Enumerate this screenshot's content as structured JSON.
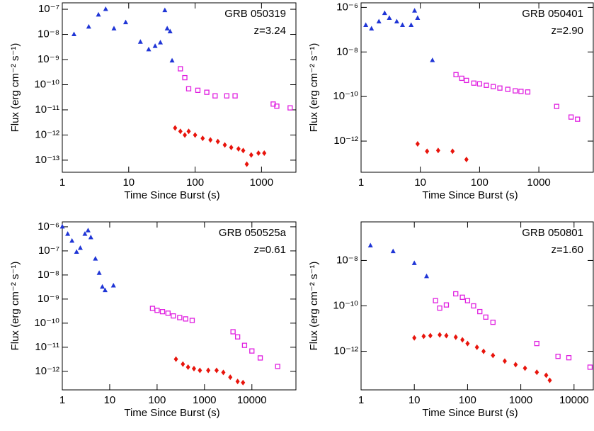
{
  "chart_data": [
    {
      "type": "scatter",
      "annotations": [
        "GRB 050319",
        "z=3.24"
      ],
      "x_label": "Time Since Burst (s)",
      "y_label": "Flux (erg cm⁻² s⁻¹)",
      "xscale": "log",
      "yscale": "log",
      "xlim": [
        1,
        3300
      ],
      "ylim": [
        3.3e-14,
        1.8e-07
      ],
      "xticks": [
        1,
        10,
        100,
        1000
      ],
      "yticks": [
        {
          "value": 1e-07,
          "label": "10⁻⁷"
        },
        {
          "value": 1e-08,
          "label": "10⁻⁸"
        },
        {
          "value": 1e-09,
          "label": "10⁻⁹"
        },
        {
          "value": 1e-10,
          "label": "10⁻¹⁰"
        },
        {
          "value": 1e-11,
          "label": "10⁻¹¹"
        },
        {
          "value": 1e-12,
          "label": "10⁻¹²"
        },
        {
          "value": 1e-13,
          "label": "10⁻¹³"
        }
      ],
      "series": [
        {
          "color": "#1f35d6",
          "marker": "triangle",
          "x": [
            1.5,
            2.5,
            3.5,
            4.5,
            6,
            9,
            15,
            20,
            25,
            30,
            35,
            38,
            42,
            45
          ],
          "values": [
            1e-08,
            2e-08,
            6e-08,
            1e-07,
            1.7e-08,
            3e-08,
            5e-09,
            2.5e-09,
            3.4e-09,
            4.7e-09,
            9e-08,
            1.7e-08,
            1.3e-08,
            9e-10
          ]
        },
        {
          "color": "#e020e0",
          "marker": "square",
          "x": [
            60,
            70,
            80,
            110,
            150,
            200,
            300,
            400,
            1500,
            1700,
            2700
          ],
          "values": [
            4.3e-10,
            1.9e-10,
            6.9e-11,
            6e-11,
            5e-11,
            3.6e-11,
            3.6e-11,
            3.6e-11,
            1.7e-11,
            1.4e-11,
            1.2e-11
          ]
        },
        {
          "color": "#e8140c",
          "marker": "diamond",
          "x": [
            50,
            60,
            70,
            80,
            100,
            130,
            170,
            220,
            280,
            350,
            450,
            530,
            600,
            700,
            900,
            1100
          ],
          "values": [
            1.9e-12,
            1.4e-12,
            1e-12,
            1.4e-12,
            1e-12,
            7.4e-13,
            6.4e-13,
            5.5e-13,
            4e-13,
            3.2e-13,
            2.8e-13,
            2.4e-13,
            6.9e-14,
            1.6e-13,
            1.9e-13,
            1.9e-13
          ]
        }
      ]
    },
    {
      "type": "scatter",
      "annotations": [
        "GRB 050401",
        "z=2.90"
      ],
      "x_label": "Time Since Burst (s)",
      "y_label": "Flux (erg cm⁻² s⁻¹)",
      "xscale": "log",
      "yscale": "log",
      "xlim": [
        1,
        8300
      ],
      "ylim": [
        4e-14,
        1.6e-06
      ],
      "xticks": [
        1,
        10,
        100,
        1000
      ],
      "yticks": [
        {
          "value": 1e-06,
          "label": "10⁻⁶"
        },
        {
          "value": 1e-08,
          "label": "10⁻⁸"
        },
        {
          "value": 1e-10,
          "label": "10⁻¹⁰"
        },
        {
          "value": 1e-12,
          "label": "10⁻¹²"
        }
      ],
      "series": [
        {
          "color": "#1f35d6",
          "marker": "triangle",
          "x": [
            1.2,
            1.5,
            2,
            2.5,
            3,
            4,
            5,
            7,
            8,
            9,
            16
          ],
          "values": [
            1.6e-07,
            1.1e-07,
            2.3e-07,
            5.5e-07,
            3.3e-07,
            2.3e-07,
            1.6e-07,
            1.6e-07,
            7e-07,
            3.3e-07,
            4.2e-09
          ]
        },
        {
          "color": "#e020e0",
          "marker": "square",
          "x": [
            40,
            50,
            60,
            80,
            100,
            130,
            170,
            220,
            300,
            400,
            500,
            650,
            2000,
            3500,
            4500
          ],
          "values": [
            9.6e-10,
            6.6e-10,
            5.3e-10,
            4e-10,
            3.7e-10,
            3.2e-10,
            2.8e-10,
            2.4e-10,
            2.1e-10,
            1.8e-10,
            1.7e-10,
            1.6e-10,
            3.6e-11,
            1.2e-11,
            9.6e-12
          ]
        },
        {
          "color": "#e8140c",
          "marker": "diamond",
          "x": [
            9,
            13,
            20,
            35,
            60
          ],
          "values": [
            7.5e-13,
            3.5e-13,
            3.8e-13,
            3.5e-13,
            1.5e-13
          ]
        }
      ]
    },
    {
      "type": "scatter",
      "annotations": [
        "GRB 050525a",
        "z=0.61"
      ],
      "x_label": "Time Since Burst (s)",
      "y_label": "Flux (erg cm⁻² s⁻¹)",
      "xscale": "log",
      "yscale": "log",
      "xlim": [
        1,
        85000
      ],
      "ylim": [
        1.7e-13,
        1.6e-06
      ],
      "xticks": [
        1,
        10,
        100,
        1000,
        10000
      ],
      "yticks": [
        {
          "value": 1e-06,
          "label": "10⁻⁶"
        },
        {
          "value": 1e-07,
          "label": "10⁻⁷"
        },
        {
          "value": 1e-08,
          "label": "10⁻⁸"
        },
        {
          "value": 1e-09,
          "label": "10⁻⁹"
        },
        {
          "value": 1e-10,
          "label": "10⁻¹⁰"
        },
        {
          "value": 1e-11,
          "label": "10⁻¹¹"
        },
        {
          "value": 1e-12,
          "label": "10⁻¹²"
        }
      ],
      "series": [
        {
          "color": "#1f35d6",
          "marker": "triangle",
          "x": [
            1,
            1.3,
            1.6,
            2,
            2.4,
            3,
            3.5,
            4,
            5,
            6,
            7,
            8,
            12
          ],
          "values": [
            1e-06,
            5e-07,
            2.6e-07,
            9e-08,
            1.3e-07,
            5e-07,
            7e-07,
            3.6e-07,
            4.7e-08,
            1.2e-08,
            3.2e-09,
            2.3e-09,
            3.6e-09
          ]
        },
        {
          "color": "#e020e0",
          "marker": "square",
          "x": [
            80,
            100,
            130,
            170,
            220,
            300,
            400,
            550,
            4000,
            5000,
            7000,
            10000,
            15000,
            35000
          ],
          "values": [
            4.1e-10,
            3.4e-10,
            3e-10,
            2.6e-10,
            2e-10,
            1.7e-10,
            1.5e-10,
            1.3e-10,
            4.4e-11,
            2.7e-11,
            1.2e-11,
            7e-12,
            3.6e-12,
            1.6e-12
          ]
        },
        {
          "color": "#e8140c",
          "marker": "diamond",
          "x": [
            250,
            350,
            450,
            600,
            800,
            1200,
            1800,
            2500,
            3500,
            5000,
            6500
          ],
          "values": [
            3.2e-12,
            2e-12,
            1.5e-12,
            1.3e-12,
            1.1e-12,
            1.1e-12,
            1.1e-12,
            9e-13,
            5.7e-13,
            3.8e-13,
            3.4e-13
          ]
        }
      ]
    },
    {
      "type": "scatter",
      "annotations": [
        "GRB 050801",
        "z=1.60"
      ],
      "x_label": "Time Since Burst (s)",
      "y_label": "Flux (erg cm⁻² s⁻¹)",
      "xscale": "log",
      "yscale": "log",
      "xlim": [
        1,
        23000
      ],
      "ylim": [
        2e-14,
        5e-07
      ],
      "xticks": [
        1,
        10,
        100,
        1000,
        10000
      ],
      "yticks": [
        {
          "value": 1e-08,
          "label": "10⁻⁸"
        },
        {
          "value": 1e-10,
          "label": "10⁻¹⁰"
        },
        {
          "value": 1e-12,
          "label": "10⁻¹²"
        }
      ],
      "series": [
        {
          "color": "#1f35d6",
          "marker": "triangle",
          "x": [
            1.5,
            4,
            10,
            17
          ],
          "values": [
            4.5e-08,
            2.5e-08,
            7.5e-09,
            2e-09
          ]
        },
        {
          "color": "#e020e0",
          "marker": "square",
          "x": [
            25,
            30,
            40,
            60,
            80,
            100,
            130,
            170,
            220,
            300,
            2000,
            5000,
            8000,
            20000
          ],
          "values": [
            1.7e-10,
            8e-11,
            1.1e-10,
            3.4e-10,
            2.4e-10,
            1.7e-10,
            1e-10,
            5.6e-11,
            3.2e-11,
            1.9e-11,
            2.2e-12,
            6e-13,
            5.2e-13,
            2e-13
          ]
        },
        {
          "color": "#e8140c",
          "marker": "diamond",
          "x": [
            10,
            15,
            20,
            30,
            40,
            60,
            80,
            100,
            150,
            200,
            300,
            500,
            800,
            1200,
            2000,
            3000,
            3500
          ],
          "values": [
            3.9e-12,
            4.6e-12,
            4.9e-12,
            5.3e-12,
            4.9e-12,
            4.2e-12,
            3.2e-12,
            2.2e-12,
            1.5e-12,
            1e-12,
            6.6e-13,
            3.7e-13,
            2.6e-13,
            1.8e-13,
            1.2e-13,
            8.8e-14,
            5.3e-14
          ]
        }
      ]
    }
  ]
}
